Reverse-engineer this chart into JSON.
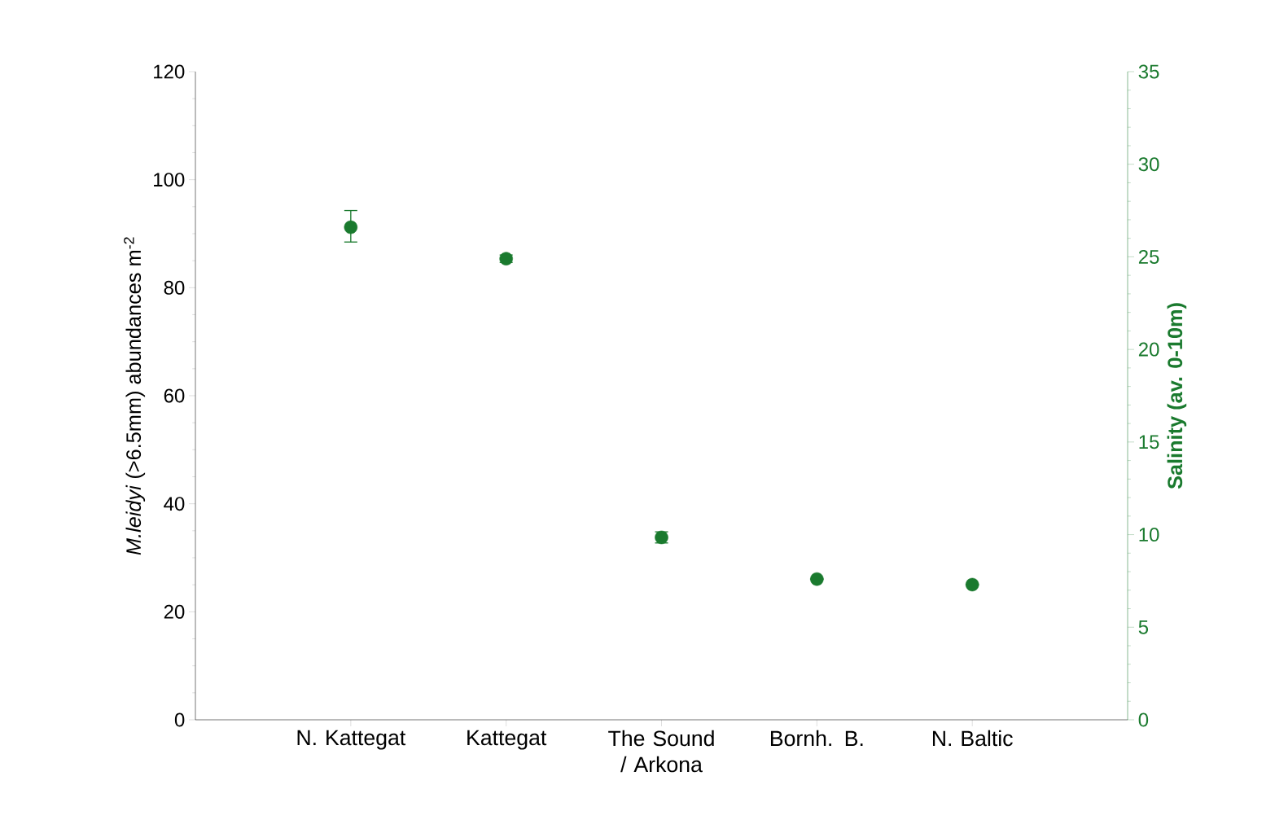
{
  "chart_data": {
    "type": "scatter",
    "ylabel": "*M.leidyi* (>6.5mm) abundances m$^{-2}$",
    "y2label": "Salinity (av. 0-10m)",
    "categories": [
      "N. Kattegat",
      "Kattegat",
      "The Sound / Arkona",
      "Bornh. B.",
      "N. Baltic"
    ],
    "ylim": [
      0,
      120
    ],
    "yticks": [
      0,
      20,
      40,
      60,
      80,
      100,
      120
    ],
    "y2lim": [
      0,
      35
    ],
    "y2ticks": [
      0,
      5,
      10,
      15,
      20,
      25,
      30,
      35
    ],
    "series": [
      {
        "color": "#1a7a2e",
        "axis": "y2",
        "values": [
          26.6,
          24.9,
          9.85,
          7.6,
          7.3
        ],
        "errors": [
          [
            25.8,
            27.5
          ],
          0.2,
          0.3,
          null,
          null
        ]
      }
    ],
    "marker": "circle",
    "grid": false
  }
}
